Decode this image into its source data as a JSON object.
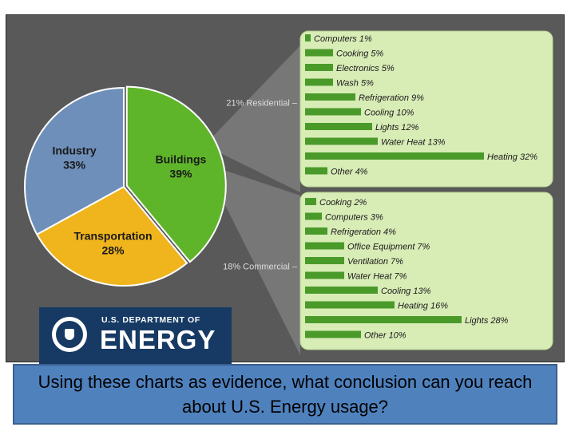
{
  "logo": {
    "dept_text": "U.S. DEPARTMENT OF",
    "name_text": "ENERGY"
  },
  "question": "Using these charts as evidence, what conclusion can you reach about U.S. Energy usage?",
  "colors": {
    "industry": "#6e8fba",
    "buildings": "#5fb52a",
    "transportation": "#f0b41c",
    "bar": "#4a9a2a",
    "panel": "#d8ecb6",
    "frame": "#595959",
    "question_bg": "#4f81bd",
    "logo_bg": "#163a64"
  },
  "chart_data": [
    {
      "type": "pie",
      "categories": [
        "Industry",
        "Buildings",
        "Transportation"
      ],
      "values": [
        33,
        39,
        28
      ],
      "labels": [
        "33%",
        "39%",
        "28%"
      ]
    },
    {
      "type": "bar",
      "group_label": "21% Residential",
      "categories": [
        "Computers",
        "Cooking",
        "Electronics",
        "Wash",
        "Refrigeration",
        "Cooling",
        "Lights",
        "Water Heat",
        "Heating",
        "Other"
      ],
      "values": [
        1,
        5,
        5,
        5,
        9,
        10,
        12,
        13,
        32,
        4
      ],
      "labels": [
        "Computers 1%",
        "Cooking 5%",
        "Electronics 5%",
        "Wash 5%",
        "Refrigeration 9%",
        "Cooling 10%",
        "Lights 12%",
        "Water Heat 13%",
        "Heating 32%",
        "Other 4%"
      ]
    },
    {
      "type": "bar",
      "group_label": "18% Commercial",
      "categories": [
        "Cooking",
        "Computers",
        "Refrigeration",
        "Office Equipment",
        "Ventilation",
        "Water Heat",
        "Cooling",
        "Heating",
        "Lights",
        "Other"
      ],
      "values": [
        2,
        3,
        4,
        7,
        7,
        7,
        13,
        16,
        28,
        10
      ],
      "labels": [
        "Cooking 2%",
        "Computers 3%",
        "Refrigeration 4%",
        "Office Equipment 7%",
        "Ventilation 7%",
        "Water Heat 7%",
        "Cooling 13%",
        "Heating 16%",
        "Lights 28%",
        "Other 10%"
      ]
    }
  ]
}
